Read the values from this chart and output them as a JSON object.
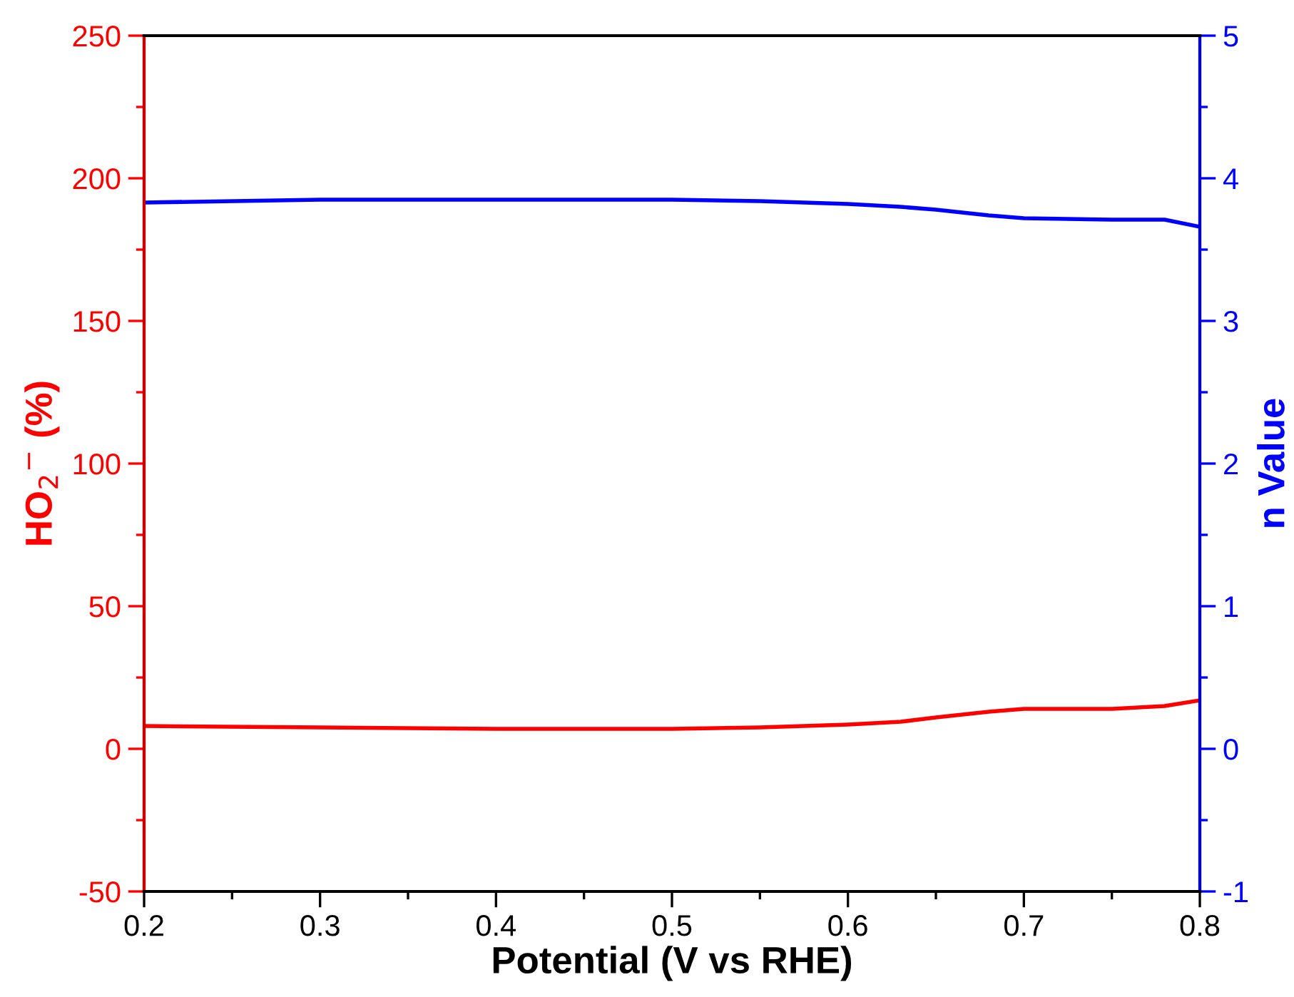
{
  "chart_data": {
    "type": "line",
    "xlabel": "Potential (V vs RHE)",
    "ylabel": "HO$_{2}$$^{−}$ (%)",
    "y2label": "n Value",
    "x": [
      0.2,
      0.3,
      0.4,
      0.5,
      0.55,
      0.6,
      0.63,
      0.65,
      0.68,
      0.7,
      0.75,
      0.78,
      0.8
    ],
    "series": [
      {
        "color": "#ff0000",
        "values": [
          8,
          7.5,
          7,
          7,
          7.5,
          8.5,
          9.5,
          11,
          13,
          14,
          14,
          15,
          17
        ]
      },
      {
        "color": "#0000ff",
        "axis": "y2",
        "values": [
          3.83,
          3.85,
          3.85,
          3.85,
          3.84,
          3.82,
          3.8,
          3.78,
          3.74,
          3.72,
          3.71,
          3.71,
          3.66
        ]
      }
    ],
    "xlim": [
      0.2,
      0.8
    ],
    "xticks": [
      0.2,
      0.3,
      0.4,
      0.5,
      0.6,
      0.7,
      0.8
    ],
    "ylim": [
      -50,
      250
    ],
    "yticks": [
      -50,
      0,
      50,
      100,
      150,
      200,
      250
    ],
    "y2lim": [
      -1,
      5
    ],
    "y2ticks": [
      -1,
      0,
      1,
      2,
      3,
      4,
      5
    ],
    "grid": false,
    "legend": false,
    "marker": "none",
    "line_style": "solid"
  }
}
